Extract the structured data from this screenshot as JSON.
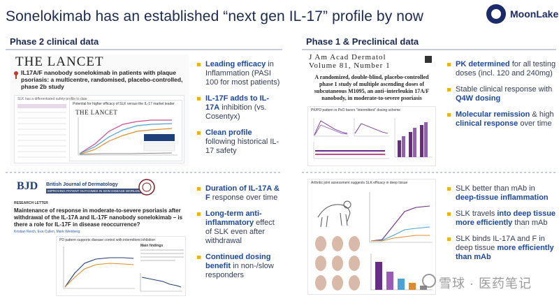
{
  "header": {
    "title": "Sonelokimab has an established “next gen IL-17” profile by now",
    "logo_text": "MoonLake"
  },
  "left_column": {
    "heading": "Phase 2 clinical data",
    "top_panel": {
      "journal": "THE LANCET",
      "paper_title": "IL17A/F nanobody sonelokimab in patients with plaque psoriasis: a multicentre, randomised, placebo-controlled, phase 2b study",
      "slide_caption": "SLK has a differentiated safety profile to date",
      "chart_caption": "Potential for higher efficacy of SLK versus the IL-17 market leader",
      "inner_journal": "THE LANCET"
    },
    "top_bullets": [
      {
        "strong": "Leading efficacy",
        "rest": " in Inflammation (PASI 100 for most patients)"
      },
      {
        "strong": "IL-17F adds to IL-17A",
        "rest": " inhibition (vs. Cosentyx)"
      },
      {
        "strong": "Clean profile",
        "rest": " following historical IL-17 safety"
      }
    ],
    "bottom_panel": {
      "logo": "BJD",
      "journal_name": "British Journal of Dermatology",
      "tagline": "IMPROVING PATIENT OUTCOMES IN SKIN DISEASE WORLDWIDE",
      "section": "RESEARCH LETTER",
      "paper_title": "Maintenance of response in moderate-to-severe psoriasis after withdrawal of the IL-17A and IL-17F nanobody sonelokimab – is there a role for IL-17F in disease reoccurrence?",
      "authors": "Kristian Reich, Eva Cullen, Mark Weinberg",
      "chart_caption": "PD pattern supports disease control with intermittent inhibition",
      "chart_note": "Main findings"
    },
    "bottom_bullets": [
      {
        "strong": "Duration of IL-17A & F",
        "rest": " response over time"
      },
      {
        "strong": "Long-term anti-inflammatory",
        "rest": " effect of SLK even after withdrawal"
      },
      {
        "strong": "Continued dosing benefit",
        "rest": " in non-/slow responders"
      }
    ]
  },
  "right_column": {
    "heading": "Phase 1 & Preclinical data",
    "top_panel": {
      "journal_line1": "J Am Acad Dermatol",
      "journal_line2": "Volume 81, Number 1",
      "abstract_title": "A randomized, double-blind, placebo-controlled phase 1 study of multiple ascending doses of subcutaneous M1095, an anti–interleukin 17A/F nanobody, in moderate-to-severe psoriasis",
      "chart_caption": "PK/PD pattern in PsO favors \"intermittent\" dosing scheme"
    },
    "top_bullets": [
      {
        "strong": "PK determined",
        "rest": " for all testing doses (incl. 120 and 240mg)"
      },
      {
        "pre": "Stable clinical response with ",
        "strong": "Q4W dosing",
        "rest": ""
      },
      {
        "strong": "Molecular remission",
        "rest": " & high ",
        "strong2": "clinical response",
        "rest2": " over time"
      }
    ],
    "bottom_panel": {
      "chart_caption": "Arthritic joint assessment suggests SLK efficacy in deep tissue"
    },
    "bottom_bullets": [
      {
        "pre": "SLK better than mAb in ",
        "strong": "deep-tissue inflammation",
        "rest": ""
      },
      {
        "pre": "SLK travels ",
        "strong": "into deep tissue more efficiently",
        "rest": " than mAb"
      },
      {
        "pre": "SLK binds IL-17A and F in deep tissue ",
        "strong": "more efficiently than mAb",
        "rest": ""
      }
    ]
  },
  "watermark": "雪球 · 医药笔记",
  "colors": {
    "title": "#1b2a52",
    "highlight": "#1b47a8",
    "bullet": "#f2b400",
    "logo": "#1b2a6b"
  }
}
